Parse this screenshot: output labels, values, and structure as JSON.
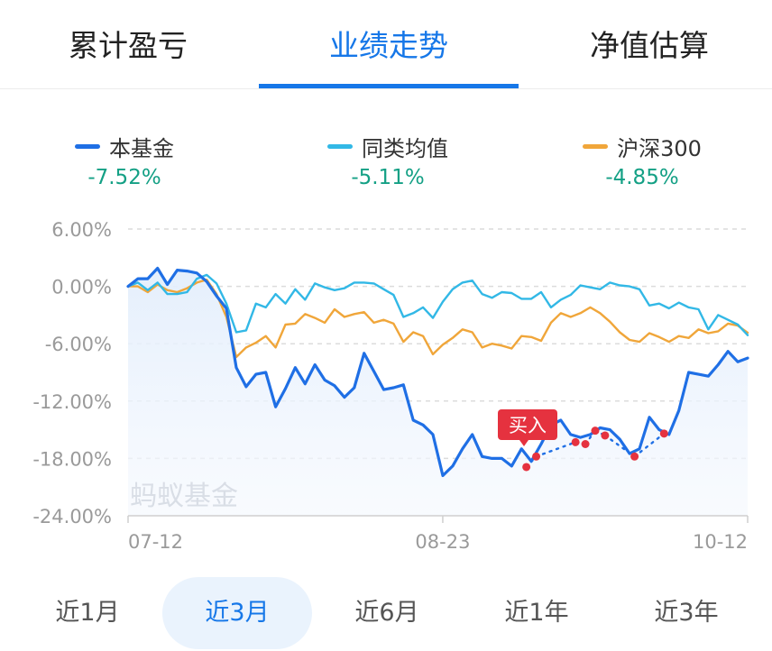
{
  "tabs": [
    {
      "label": "累计盈亏",
      "active": false
    },
    {
      "label": "业绩走势",
      "active": true
    },
    {
      "label": "净值估算",
      "active": false
    }
  ],
  "legend": [
    {
      "name": "本基金",
      "value": "-7.52%",
      "color": "#1f6fe5"
    },
    {
      "name": "同类均值",
      "value": "-5.11%",
      "color": "#32b8e6"
    },
    {
      "name": "沪深300",
      "value": "-4.85%",
      "color": "#f0a63a"
    }
  ],
  "periods": [
    {
      "label": "近1月",
      "active": false
    },
    {
      "label": "近3月",
      "active": true
    },
    {
      "label": "近6月",
      "active": false
    },
    {
      "label": "近1年",
      "active": false
    },
    {
      "label": "近3年",
      "active": false
    }
  ],
  "chart_data": {
    "type": "line",
    "ylim": [
      -24,
      6
    ],
    "y_ticks": [
      "6.00%",
      "0.00%",
      "-6.00%",
      "-12.00%",
      "-18.00%",
      "-24.00%"
    ],
    "x_tick_labels": [
      "07-12",
      "08-23",
      "10-12"
    ],
    "watermark": "蚂蚁基金",
    "buy_marker_label": "买入",
    "colors": {
      "fund": "#1f6fe5",
      "peer": "#32b8e6",
      "hs300": "#f0a63a",
      "buy": "#e5323f",
      "grid": "#dcdcdc"
    },
    "series": [
      {
        "name": "本基金",
        "values": [
          0.0,
          0.8,
          0.8,
          1.9,
          0.2,
          1.7,
          1.6,
          1.4,
          0.5,
          -1.0,
          -2.3,
          -8.5,
          -10.5,
          -9.2,
          -9.0,
          -12.6,
          -10.7,
          -8.5,
          -10.2,
          -8.2,
          -9.8,
          -10.4,
          -11.6,
          -10.6,
          -7.0,
          -8.9,
          -10.8,
          -10.6,
          -10.3,
          -14.0,
          -14.5,
          -15.5,
          -19.8,
          -18.8,
          -17.0,
          -15.5,
          -17.8,
          -18.0,
          -18.0,
          -18.8,
          -17.0,
          -18.3,
          -16.5,
          -14.5,
          -14.0,
          -15.5,
          -15.8,
          -15.5,
          -14.8,
          -15.0,
          -16.0,
          -17.5,
          -17.0,
          -13.7,
          -15.0,
          -15.5,
          -13.0,
          -9.0,
          -9.2,
          -9.4,
          -8.2,
          -6.8,
          -7.9,
          -7.5
        ]
      },
      {
        "name": "同类均值",
        "values": [
          0.0,
          0.4,
          -0.4,
          0.4,
          -0.8,
          -0.8,
          -0.6,
          0.8,
          1.2,
          0.3,
          -1.8,
          -4.8,
          -4.6,
          -1.8,
          -2.2,
          -0.8,
          -1.8,
          -0.3,
          -1.4,
          0.3,
          -0.1,
          -0.4,
          -0.2,
          0.4,
          0.4,
          0.3,
          -0.3,
          -0.9,
          -3.2,
          -2.8,
          -2.2,
          -3.3,
          -1.6,
          -0.3,
          0.4,
          0.6,
          -0.8,
          -1.2,
          -0.6,
          -0.7,
          -1.3,
          -1.3,
          -0.6,
          -2.2,
          -1.4,
          -0.9,
          0.1,
          -0.1,
          -0.3,
          0.4,
          0.1,
          0.0,
          -0.3,
          -2.0,
          -1.8,
          -2.3,
          -1.7,
          -2.2,
          -2.4,
          -4.5,
          -3.0,
          -3.5,
          -4.0,
          -5.1
        ]
      },
      {
        "name": "沪深300",
        "values": [
          0.0,
          0.0,
          -0.6,
          0.2,
          -0.4,
          -0.6,
          -0.2,
          0.4,
          0.7,
          -0.8,
          -3.2,
          -7.4,
          -6.4,
          -5.9,
          -5.2,
          -6.4,
          -4.0,
          -3.9,
          -2.9,
          -3.3,
          -3.8,
          -2.4,
          -3.2,
          -2.9,
          -2.7,
          -3.8,
          -3.5,
          -3.9,
          -5.8,
          -4.8,
          -5.2,
          -7.1,
          -6.1,
          -5.4,
          -4.5,
          -4.8,
          -6.4,
          -6.0,
          -6.2,
          -6.5,
          -5.2,
          -5.3,
          -5.7,
          -3.8,
          -2.8,
          -3.2,
          -2.8,
          -2.2,
          -2.8,
          -3.7,
          -4.8,
          -5.6,
          -5.8,
          -4.9,
          -5.3,
          -5.8,
          -5.2,
          -5.4,
          -4.5,
          -4.9,
          -4.7,
          -3.9,
          -4.1,
          -4.85
        ]
      }
    ],
    "buy_points": [
      {
        "x": 40.5,
        "y": -18.9
      },
      {
        "x": 41.5,
        "y": -17.8
      },
      {
        "x": 45.5,
        "y": -16.3
      },
      {
        "x": 46.5,
        "y": -16.5
      },
      {
        "x": 47.5,
        "y": -15.1
      },
      {
        "x": 48.5,
        "y": -15.6
      },
      {
        "x": 51.5,
        "y": -17.8
      },
      {
        "x": 54.5,
        "y": -15.4
      }
    ]
  }
}
